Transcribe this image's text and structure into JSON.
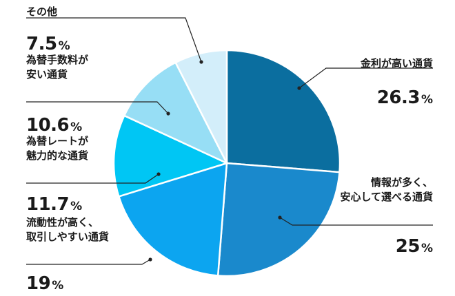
{
  "chart_data": {
    "type": "pie",
    "start_angle": "12 o'clock",
    "direction": "clockwise",
    "slices": [
      {
        "label_lines": [
          "金利が高い通貨"
        ],
        "value": 26.3,
        "value_text": "26.3",
        "unit": "%",
        "color": "#0b6e9f",
        "label_side": "right"
      },
      {
        "label_lines": [
          "情報が多く、",
          "安心して選べる通貨"
        ],
        "value": 25,
        "value_text": "25",
        "unit": "%",
        "color": "#1a89cc",
        "label_side": "right"
      },
      {
        "label_lines": [
          "流動性が高く、",
          "取引しやすい通貨"
        ],
        "value": 19,
        "value_text": "19",
        "unit": "%",
        "color": "#0ca5f0",
        "label_side": "left"
      },
      {
        "label_lines": [
          "為替レートが",
          "魅力的な通貨"
        ],
        "value": 11.7,
        "value_text": "11.7",
        "unit": "%",
        "color": "#00c6f4",
        "label_side": "left"
      },
      {
        "label_lines": [
          "為替手数料が",
          "安い通貨"
        ],
        "value": 10.6,
        "value_text": "10.6",
        "unit": "%",
        "color": "#97def5",
        "label_side": "left"
      },
      {
        "label_lines": [
          "その他"
        ],
        "value": 7.5,
        "value_text": "7.5",
        "unit": "%",
        "color": "#d3eefa",
        "label_side": "left"
      }
    ]
  }
}
